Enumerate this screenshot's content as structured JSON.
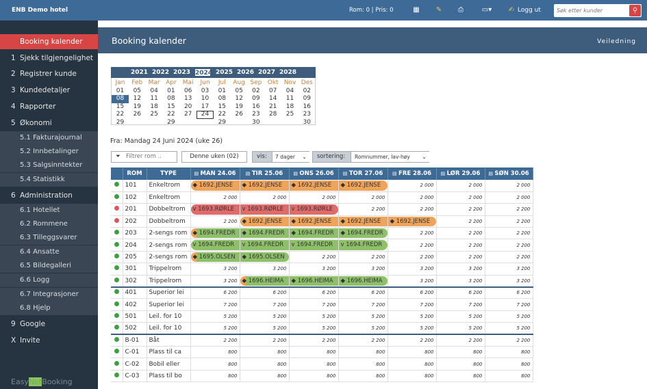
{
  "topbar": {
    "app_name": "ENB Demo hotel",
    "room_price": "Rom: 0 | Pris: 0",
    "logout": "Logg ut",
    "search_placeholder": "Søk etter kunder"
  },
  "sidebar": {
    "items": [
      {
        "n": "",
        "label": "Booking kalender"
      },
      {
        "n": "1",
        "label": "Sjekk tilgjengelighet"
      },
      {
        "n": "2",
        "label": "Registrer kunde"
      },
      {
        "n": "3",
        "label": "Kundedetaljer"
      },
      {
        "n": "4",
        "label": "Rapporter"
      },
      {
        "n": "5",
        "label": "Økonomi"
      },
      {
        "n": "",
        "label": "5.1 Fakturajournal"
      },
      {
        "n": "",
        "label": "5.2 Innbetalinger"
      },
      {
        "n": "",
        "label": "5.3 Salgsinntekter"
      },
      {
        "n": "",
        "label": "5.4 Statistikk"
      },
      {
        "n": "6",
        "label": "Administration"
      },
      {
        "n": "",
        "label": "6.1 Hotellet"
      },
      {
        "n": "",
        "label": "6.2 Rommene"
      },
      {
        "n": "",
        "label": "6.3 Tilleggsvarer"
      },
      {
        "n": "",
        "label": "6.4 Ansatte"
      },
      {
        "n": "",
        "label": "6.5 Bildegalleri"
      },
      {
        "n": "",
        "label": "6.6 Logg"
      },
      {
        "n": "",
        "label": "6.7 Integrasjoner"
      },
      {
        "n": "",
        "label": "6.8 Hjelp"
      },
      {
        "n": "9",
        "label": "Google"
      },
      {
        "n": "X",
        "label": "Invite"
      }
    ],
    "brand": {
      "p1": "Easy",
      "p2": "Net",
      "p3": "Booking"
    }
  },
  "header": {
    "title": "Booking kalender",
    "help": "Veiledning"
  },
  "years": [
    "2021",
    "2022",
    "2023",
    "2024",
    "2025",
    "2026",
    "2027",
    "2028"
  ],
  "months": [
    {
      "m": "Jan",
      "d": [
        "01",
        "08",
        "15",
        "22",
        "29"
      ]
    },
    {
      "m": "Feb",
      "d": [
        "05",
        "12",
        "19",
        "26",
        ""
      ]
    },
    {
      "m": "Mar",
      "d": [
        "04",
        "11",
        "18",
        "25",
        ""
      ]
    },
    {
      "m": "Apr",
      "d": [
        "01",
        "08",
        "15",
        "22",
        "29"
      ]
    },
    {
      "m": "Mai",
      "d": [
        "06",
        "13",
        "20",
        "27",
        ""
      ]
    },
    {
      "m": "Jun",
      "d": [
        "03",
        "10",
        "17",
        "24",
        ""
      ]
    },
    {
      "m": "Jul",
      "d": [
        "01",
        "08",
        "15",
        "22",
        "29"
      ]
    },
    {
      "m": "Aug",
      "d": [
        "05",
        "12",
        "19",
        "26",
        ""
      ]
    },
    {
      "m": "Sep",
      "d": [
        "02",
        "09",
        "16",
        "23",
        "30"
      ]
    },
    {
      "m": "Okt",
      "d": [
        "07",
        "14",
        "21",
        "28",
        ""
      ]
    },
    {
      "m": "Nov",
      "d": [
        "04",
        "11",
        "18",
        "25",
        ""
      ]
    },
    {
      "m": "Des",
      "d": [
        "02",
        "09",
        "16",
        "23",
        "30"
      ]
    }
  ],
  "from_text": "Fra: Mandag 24 Juni 2024 (uke 26)",
  "controls": {
    "filter_placeholder": "Filtrer rom ..",
    "this_week": "Denne uken (02)",
    "vis_label": "vis:",
    "vis_value": "7 dager",
    "sort_label": "sortering:",
    "sort_value": "Romnummer, lav-høy"
  },
  "table": {
    "columns": [
      "ROM",
      "TYPE",
      "MAN 24.06",
      "TIR 25.06",
      "ONS 26.06",
      "TOR 27.06",
      "FRE 28.06",
      "LØR 29.06",
      "SØN 30.06"
    ],
    "rows": [
      {
        "status": "green",
        "rom": "101",
        "type": "Enkeltrom",
        "cells": [
          "◆ 1692.JENSE",
          "◆ 1692.JENSE",
          "◆ 1692.JENSE",
          "◆ 1692.JENSE",
          "2 000",
          "2 000",
          "2 000"
        ],
        "k": [
          "o-l",
          "o",
          "o",
          "o-r",
          "p",
          "p",
          "p"
        ]
      },
      {
        "status": "green",
        "rom": "102",
        "type": "Enkeltrom",
        "cells": [
          "2 000",
          "2 000",
          "2 000",
          "2 000",
          "2 000",
          "2 000",
          "2 000"
        ],
        "k": [
          "p",
          "p",
          "p",
          "p",
          "p",
          "p",
          "p"
        ]
      },
      {
        "status": "red",
        "rom": "201",
        "type": "Dobbeltrom",
        "cells": [
          "v 1693.RØRLE",
          "v 1693.RØRLE",
          "v 1693.RØRLE",
          "2 200",
          "2 200",
          "2 200",
          "2 200"
        ],
        "k": [
          "r-l",
          "r",
          "r-r",
          "p",
          "p",
          "p",
          "p"
        ]
      },
      {
        "status": "red",
        "rom": "202",
        "type": "Dobbeltrom",
        "cells": [
          "2 200",
          "◆ 1692.JENSE",
          "◆ 1692.JENSE",
          "◆ 1692.JENSE",
          "◆ 1692.JENSE",
          "2 200",
          "2 200"
        ],
        "k": [
          "p",
          "o-l",
          "o",
          "o",
          "o-r",
          "p",
          "p"
        ]
      },
      {
        "status": "green",
        "rom": "203",
        "type": "2-sengs rom",
        "cells": [
          "◆ 1694.FREDR",
          "◆ 1694.FREDR",
          "◆ 1694.FREDR",
          "◆ 1694.FREDR",
          "2 200",
          "2 200",
          "2 200"
        ],
        "k": [
          "go-l",
          "g",
          "g",
          "g-r",
          "p",
          "p",
          "p"
        ]
      },
      {
        "status": "green",
        "rom": "204",
        "type": "2-sengs rom",
        "cells": [
          "v 1694.FREDR",
          "v 1694.FREDR",
          "v 1694.FREDR",
          "v 1694.FREDR",
          "2 200",
          "2 200",
          "2 200"
        ],
        "k": [
          "g-l",
          "g",
          "g",
          "g-r",
          "p",
          "p",
          "p"
        ]
      },
      {
        "status": "green",
        "rom": "205",
        "type": "2-sengs rom",
        "cells": [
          "◆ 1695.OLSEN",
          "◆ 1695.OLSEN",
          "2 200",
          "2 200",
          "2 200",
          "2 200",
          "2 200"
        ],
        "k": [
          "go-l",
          "g-r",
          "p",
          "p",
          "p",
          "p",
          "p"
        ]
      },
      {
        "status": "green",
        "rom": "301",
        "type": "Trippelrom",
        "cells": [
          "3 200",
          "3 200",
          "3 200",
          "3 200",
          "3 200",
          "3 200",
          "3 200"
        ],
        "k": [
          "p",
          "p",
          "p",
          "p",
          "p",
          "p",
          "p"
        ]
      },
      {
        "status": "green",
        "rom": "302",
        "type": "Trippelrom",
        "cells": [
          "3 200",
          "◆ 1696.HEIMA",
          "◆ 1696.HEIMA",
          "◆ 1696.HEIMA",
          "3 200",
          "3 200",
          "3 200"
        ],
        "k": [
          "p",
          "go-l",
          "g",
          "g-r",
          "p",
          "p",
          "p"
        ],
        "sep": true
      },
      {
        "status": "green",
        "rom": "401",
        "type": "Superior lei",
        "cells": [
          "6 200",
          "6 200",
          "6 200",
          "6 200",
          "6 200",
          "6 200",
          "6 200"
        ],
        "k": [
          "p",
          "p",
          "p",
          "p",
          "p",
          "p",
          "p"
        ]
      },
      {
        "status": "green",
        "rom": "402",
        "type": "Superior lei",
        "cells": [
          "7 200",
          "7 200",
          "7 200",
          "7 200",
          "7 200",
          "7 200",
          "7 200"
        ],
        "k": [
          "p",
          "p",
          "p",
          "p",
          "p",
          "p",
          "p"
        ]
      },
      {
        "status": "green",
        "rom": "501",
        "type": "Leil. for 10",
        "cells": [
          "5 200",
          "5 200",
          "5 200",
          "5 200",
          "5 200",
          "5 200",
          "5 200"
        ],
        "k": [
          "p",
          "p",
          "p",
          "p",
          "p",
          "p",
          "p"
        ]
      },
      {
        "status": "green",
        "rom": "502",
        "type": "Leil. for 10",
        "cells": [
          "5 200",
          "5 200",
          "5 200",
          "5 200",
          "5 200",
          "5 200",
          "5 200"
        ],
        "k": [
          "p",
          "p",
          "p",
          "p",
          "p",
          "p",
          "p"
        ],
        "sep": true
      },
      {
        "status": "green",
        "rom": "B-01",
        "type": "Båt",
        "cells": [
          "2 200",
          "2 200",
          "2 200",
          "2 200",
          "2 200",
          "2 200",
          "2 200"
        ],
        "k": [
          "p",
          "p",
          "p",
          "p",
          "p",
          "p",
          "p"
        ]
      },
      {
        "status": "green",
        "rom": "C-01",
        "type": "Plass til ca",
        "cells": [
          "800",
          "800",
          "800",
          "800",
          "800",
          "800",
          "800"
        ],
        "k": [
          "p",
          "p",
          "p",
          "p",
          "p",
          "p",
          "p"
        ]
      },
      {
        "status": "green",
        "rom": "C-02",
        "type": "Bobil eller",
        "cells": [
          "800",
          "800",
          "800",
          "800",
          "800",
          "800",
          "800"
        ],
        "k": [
          "p",
          "p",
          "p",
          "p",
          "p",
          "p",
          "p"
        ]
      },
      {
        "status": "green",
        "rom": "C-03",
        "type": "Plass til bo",
        "cells": [
          "800",
          "800",
          "800",
          "800",
          "800",
          "800",
          "800"
        ],
        "k": [
          "p",
          "p",
          "p",
          "p",
          "p",
          "p",
          "p"
        ]
      }
    ]
  },
  "colors": {
    "accent": "#d74545",
    "header": "#3e5c7c",
    "booked": "#f0a45a",
    "checkedin": "#8ec06a",
    "departing": "#df6b6b"
  }
}
